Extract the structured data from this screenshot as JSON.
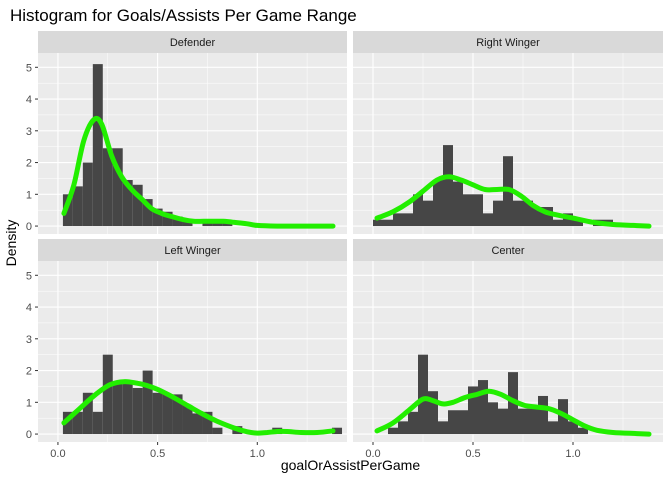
{
  "chart_data": {
    "type": "histogram",
    "title": "Histogram for Goals/Assists Per Game Range",
    "xlabel": "goalOrAssistPerGame",
    "ylabel": "Density",
    "xlim": [
      -0.1,
      1.45
    ],
    "ylim": [
      -0.25,
      5.45
    ],
    "xticks": [
      0.0,
      0.5,
      1.0
    ],
    "xtick_labels": [
      "0.0",
      "0.5",
      "1.0"
    ],
    "yticks": [
      0,
      1,
      2,
      3,
      4,
      5
    ],
    "ytick_labels": [
      "0",
      "1",
      "2",
      "3",
      "4",
      "5"
    ],
    "bin_width": 0.05,
    "colors": {
      "bars": "#464646",
      "density": "#22ee00",
      "panel": "#ebebeb",
      "grid": "#ffffff",
      "strip": "#d9d9d9"
    },
    "panels": [
      {
        "name": "Defender",
        "bins": [
          {
            "x0": 0.025,
            "value": 1.0
          },
          {
            "x0": 0.075,
            "value": 1.25
          },
          {
            "x0": 0.125,
            "value": 2.0
          },
          {
            "x0": 0.175,
            "value": 5.1
          },
          {
            "x0": 0.225,
            "value": 2.45
          },
          {
            "x0": 0.275,
            "value": 2.45
          },
          {
            "x0": 0.325,
            "value": 1.45
          },
          {
            "x0": 0.375,
            "value": 1.3
          },
          {
            "x0": 0.425,
            "value": 0.85
          },
          {
            "x0": 0.475,
            "value": 0.55
          },
          {
            "x0": 0.525,
            "value": 0.45
          },
          {
            "x0": 0.575,
            "value": 0.3
          },
          {
            "x0": 0.625,
            "value": 0.2
          },
          {
            "x0": 0.675,
            "value": 0.0
          },
          {
            "x0": 0.725,
            "value": 0.2
          },
          {
            "x0": 0.775,
            "value": 0.15
          },
          {
            "x0": 0.825,
            "value": 0.15
          }
        ],
        "density": [
          [
            0.03,
            0.4
          ],
          [
            0.08,
            1.3
          ],
          [
            0.13,
            2.7
          ],
          [
            0.18,
            3.35
          ],
          [
            0.22,
            3.2
          ],
          [
            0.27,
            2.2
          ],
          [
            0.32,
            1.55
          ],
          [
            0.37,
            1.15
          ],
          [
            0.42,
            0.85
          ],
          [
            0.47,
            0.55
          ],
          [
            0.52,
            0.4
          ],
          [
            0.57,
            0.3
          ],
          [
            0.63,
            0.2
          ],
          [
            0.68,
            0.15
          ],
          [
            0.73,
            0.15
          ],
          [
            0.78,
            0.15
          ],
          [
            0.83,
            0.15
          ],
          [
            0.88,
            0.12
          ],
          [
            0.95,
            0.07
          ],
          [
            1.0,
            0.02
          ],
          [
            1.1,
            0.0
          ],
          [
            1.2,
            0.0
          ],
          [
            1.3,
            0.0
          ],
          [
            1.38,
            0.0
          ]
        ]
      },
      {
        "name": "Right Winger",
        "bins": [
          {
            "x0": 0.0,
            "value": 0.2
          },
          {
            "x0": 0.05,
            "value": 0.2
          },
          {
            "x0": 0.1,
            "value": 0.4
          },
          {
            "x0": 0.15,
            "value": 0.4
          },
          {
            "x0": 0.2,
            "value": 1.0
          },
          {
            "x0": 0.25,
            "value": 0.8
          },
          {
            "x0": 0.3,
            "value": 1.45
          },
          {
            "x0": 0.35,
            "value": 2.55
          },
          {
            "x0": 0.4,
            "value": 1.4
          },
          {
            "x0": 0.45,
            "value": 1.0
          },
          {
            "x0": 0.5,
            "value": 1.0
          },
          {
            "x0": 0.55,
            "value": 0.4
          },
          {
            "x0": 0.6,
            "value": 0.8
          },
          {
            "x0": 0.65,
            "value": 2.2
          },
          {
            "x0": 0.7,
            "value": 0.8
          },
          {
            "x0": 0.75,
            "value": 0.8
          },
          {
            "x0": 0.8,
            "value": 0.6
          },
          {
            "x0": 0.85,
            "value": 0.6
          },
          {
            "x0": 0.9,
            "value": 0.2
          },
          {
            "x0": 0.95,
            "value": 0.4
          },
          {
            "x0": 1.0,
            "value": 0.2
          },
          {
            "x0": 1.05,
            "value": 0.0
          },
          {
            "x0": 1.1,
            "value": 0.2
          },
          {
            "x0": 1.15,
            "value": 0.2
          }
        ],
        "density": [
          [
            0.02,
            0.25
          ],
          [
            0.1,
            0.45
          ],
          [
            0.18,
            0.75
          ],
          [
            0.25,
            1.1
          ],
          [
            0.32,
            1.45
          ],
          [
            0.38,
            1.55
          ],
          [
            0.44,
            1.45
          ],
          [
            0.5,
            1.3
          ],
          [
            0.56,
            1.15
          ],
          [
            0.62,
            1.15
          ],
          [
            0.68,
            1.15
          ],
          [
            0.74,
            0.95
          ],
          [
            0.8,
            0.65
          ],
          [
            0.86,
            0.45
          ],
          [
            0.92,
            0.35
          ],
          [
            1.0,
            0.25
          ],
          [
            1.1,
            0.12
          ],
          [
            1.2,
            0.05
          ],
          [
            1.3,
            0.02
          ],
          [
            1.38,
            0.0
          ]
        ]
      },
      {
        "name": "Left Winger",
        "bins": [
          {
            "x0": 0.025,
            "value": 0.7
          },
          {
            "x0": 0.075,
            "value": 0.7
          },
          {
            "x0": 0.125,
            "value": 1.3
          },
          {
            "x0": 0.175,
            "value": 0.7
          },
          {
            "x0": 0.225,
            "value": 2.5
          },
          {
            "x0": 0.275,
            "value": 1.6
          },
          {
            "x0": 0.325,
            "value": 1.6
          },
          {
            "x0": 0.375,
            "value": 1.45
          },
          {
            "x0": 0.425,
            "value": 2.0
          },
          {
            "x0": 0.475,
            "value": 1.3
          },
          {
            "x0": 0.525,
            "value": 1.25
          },
          {
            "x0": 0.575,
            "value": 1.25
          },
          {
            "x0": 0.625,
            "value": 0.9
          },
          {
            "x0": 0.675,
            "value": 0.65
          },
          {
            "x0": 0.725,
            "value": 0.7
          },
          {
            "x0": 0.775,
            "value": 0.2
          },
          {
            "x0": 0.825,
            "value": 0.0
          },
          {
            "x0": 0.875,
            "value": 0.25
          },
          {
            "x0": 0.925,
            "value": 0.0
          },
          {
            "x0": 0.975,
            "value": 0.0
          },
          {
            "x0": 1.025,
            "value": 0.0
          },
          {
            "x0": 1.075,
            "value": 0.2
          },
          {
            "x0": 1.125,
            "value": 0.0
          },
          {
            "x0": 1.175,
            "value": 0.0
          },
          {
            "x0": 1.225,
            "value": 0.0
          },
          {
            "x0": 1.275,
            "value": 0.0
          },
          {
            "x0": 1.325,
            "value": 0.0
          },
          {
            "x0": 1.375,
            "value": 0.2
          }
        ],
        "density": [
          [
            0.03,
            0.35
          ],
          [
            0.1,
            0.75
          ],
          [
            0.18,
            1.2
          ],
          [
            0.26,
            1.55
          ],
          [
            0.33,
            1.65
          ],
          [
            0.4,
            1.6
          ],
          [
            0.46,
            1.5
          ],
          [
            0.52,
            1.35
          ],
          [
            0.58,
            1.15
          ],
          [
            0.65,
            0.9
          ],
          [
            0.72,
            0.65
          ],
          [
            0.8,
            0.4
          ],
          [
            0.88,
            0.2
          ],
          [
            0.95,
            0.07
          ],
          [
            1.0,
            0.03
          ],
          [
            1.05,
            0.05
          ],
          [
            1.1,
            0.08
          ],
          [
            1.15,
            0.08
          ],
          [
            1.22,
            0.05
          ],
          [
            1.3,
            0.05
          ],
          [
            1.38,
            0.1
          ]
        ]
      },
      {
        "name": "Center",
        "bins": [
          {
            "x0": 0.075,
            "value": 0.2
          },
          {
            "x0": 0.125,
            "value": 0.4
          },
          {
            "x0": 0.175,
            "value": 0.7
          },
          {
            "x0": 0.225,
            "value": 2.5
          },
          {
            "x0": 0.275,
            "value": 1.35
          },
          {
            "x0": 0.325,
            "value": 0.4
          },
          {
            "x0": 0.375,
            "value": 0.75
          },
          {
            "x0": 0.425,
            "value": 0.75
          },
          {
            "x0": 0.475,
            "value": 1.5
          },
          {
            "x0": 0.525,
            "value": 1.7
          },
          {
            "x0": 0.575,
            "value": 1.0
          },
          {
            "x0": 0.625,
            "value": 0.8
          },
          {
            "x0": 0.675,
            "value": 1.95
          },
          {
            "x0": 0.725,
            "value": 0.8
          },
          {
            "x0": 0.775,
            "value": 0.8
          },
          {
            "x0": 0.825,
            "value": 1.2
          },
          {
            "x0": 0.875,
            "value": 0.4
          },
          {
            "x0": 0.925,
            "value": 1.1
          },
          {
            "x0": 0.975,
            "value": 0.4
          },
          {
            "x0": 1.025,
            "value": 0.2
          },
          {
            "x0": 1.075,
            "value": 0.0
          }
        ],
        "density": [
          [
            0.02,
            0.1
          ],
          [
            0.1,
            0.35
          ],
          [
            0.18,
            0.75
          ],
          [
            0.25,
            1.1
          ],
          [
            0.3,
            1.05
          ],
          [
            0.35,
            0.95
          ],
          [
            0.4,
            1.0
          ],
          [
            0.46,
            1.15
          ],
          [
            0.52,
            1.25
          ],
          [
            0.58,
            1.35
          ],
          [
            0.64,
            1.25
          ],
          [
            0.7,
            1.05
          ],
          [
            0.76,
            0.9
          ],
          [
            0.82,
            0.85
          ],
          [
            0.88,
            0.8
          ],
          [
            0.94,
            0.65
          ],
          [
            1.0,
            0.45
          ],
          [
            1.06,
            0.25
          ],
          [
            1.12,
            0.12
          ],
          [
            1.2,
            0.05
          ],
          [
            1.3,
            0.02
          ],
          [
            1.38,
            0.0
          ]
        ]
      }
    ]
  }
}
